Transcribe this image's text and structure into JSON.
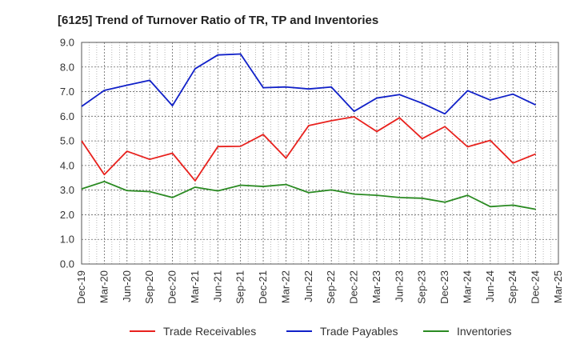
{
  "chart_data": {
    "type": "line",
    "title": "[6125]  Trend of Turnover Ratio of TR, TP and Inventories",
    "xlabel": "",
    "ylabel": "",
    "ylim": [
      0,
      9
    ],
    "yticks": [
      "0.0",
      "1.0",
      "2.0",
      "3.0",
      "4.0",
      "5.0",
      "6.0",
      "7.0",
      "8.0",
      "9.0"
    ],
    "x_tick_labels": [
      "Dec-19",
      "Mar-20",
      "Jun-20",
      "Sep-20",
      "Dec-20",
      "Mar-21",
      "Jun-21",
      "Sep-21",
      "Dec-21",
      "Mar-22",
      "Jun-22",
      "Sep-22",
      "Dec-22",
      "Mar-23",
      "Jun-23",
      "Sep-23",
      "Dec-23",
      "Mar-24",
      "Jun-24",
      "Sep-24",
      "Dec-24",
      "Mar-25"
    ],
    "x": [
      "Dec-19",
      "Mar-20",
      "Jun-20",
      "Sep-20",
      "Dec-20",
      "Mar-21",
      "Jun-21",
      "Sep-21",
      "Dec-21",
      "Mar-22",
      "Jun-22",
      "Sep-22",
      "Dec-22",
      "Mar-23",
      "Jun-23",
      "Sep-23",
      "Dec-23",
      "Mar-24",
      "Jun-24",
      "Sep-24",
      "Dec-24"
    ],
    "grid": true,
    "legend_position": "bottom",
    "series": [
      {
        "name": "Trade Receivables",
        "color": "#e8211d",
        "values": [
          5.0,
          3.63,
          4.58,
          4.25,
          4.5,
          3.38,
          4.77,
          4.78,
          5.26,
          4.3,
          5.62,
          5.82,
          5.98,
          5.38,
          5.94,
          5.09,
          5.58,
          4.76,
          5.02,
          4.1,
          4.47
        ]
      },
      {
        "name": "Trade Payables",
        "color": "#1020c8",
        "values": [
          6.4,
          7.05,
          7.26,
          7.46,
          6.43,
          7.93,
          8.49,
          8.53,
          7.16,
          7.19,
          7.11,
          7.19,
          6.2,
          6.74,
          6.88,
          6.53,
          6.1,
          7.04,
          6.66,
          6.9,
          6.46
        ]
      },
      {
        "name": "Inventories",
        "color": "#2a8a22",
        "values": [
          3.05,
          3.35,
          2.98,
          2.94,
          2.7,
          3.12,
          2.97,
          3.2,
          3.15,
          3.23,
          2.9,
          3.01,
          2.84,
          2.79,
          2.7,
          2.67,
          2.51,
          2.79,
          2.33,
          2.39,
          2.22
        ]
      }
    ]
  }
}
